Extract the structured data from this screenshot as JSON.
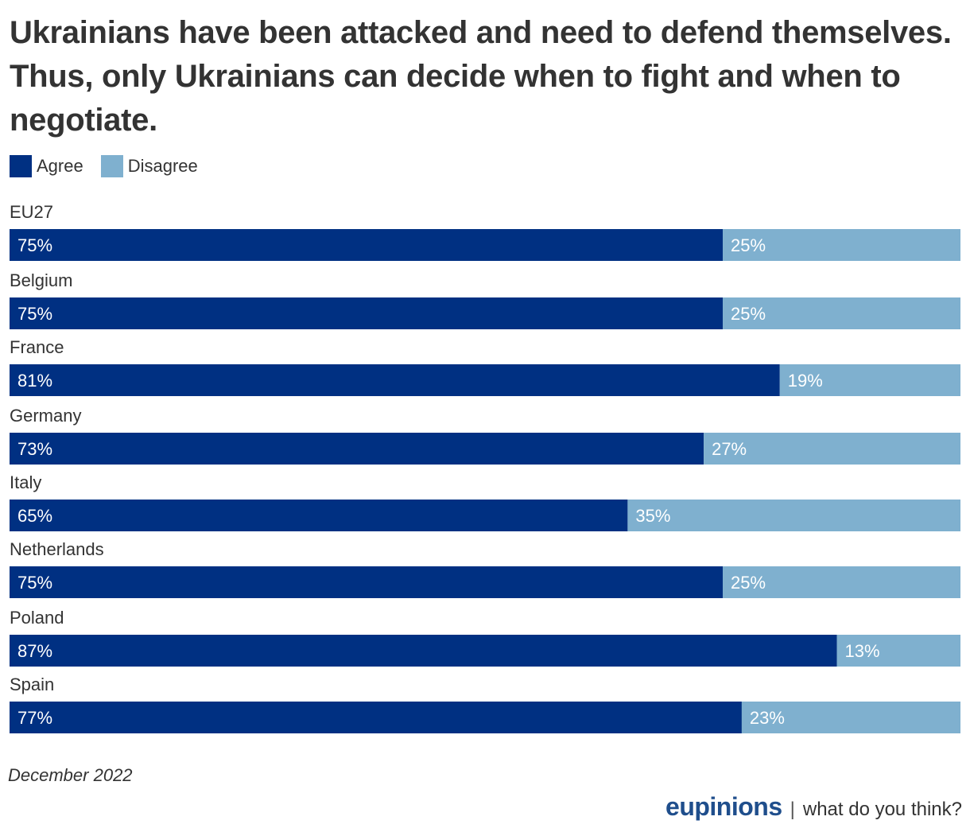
{
  "chart_data": {
    "type": "bar",
    "stacked": true,
    "orientation": "horizontal",
    "title": "Ukrainians have been attacked and need to defend themselves. Thus, only Ukrainians can decide when to fight and when to negotiate.",
    "categories": [
      "EU27",
      "Belgium",
      "France",
      "Germany",
      "Italy",
      "Netherlands",
      "Poland",
      "Spain"
    ],
    "series": [
      {
        "name": "Agree",
        "color": "#003082",
        "values": [
          75,
          75,
          81,
          73,
          65,
          75,
          87,
          77
        ]
      },
      {
        "name": "Disagree",
        "color": "#7fb0cf",
        "values": [
          25,
          25,
          19,
          27,
          35,
          25,
          13,
          23
        ]
      }
    ],
    "value_suffix": "%",
    "xlim": [
      0,
      100
    ],
    "legend_position": "top-left"
  },
  "legend": {
    "agree_label": "Agree",
    "disagree_label": "Disagree"
  },
  "footer": {
    "date": "December 2022",
    "brand": "eupinions",
    "separator": "|",
    "tagline": "what do you think?"
  }
}
